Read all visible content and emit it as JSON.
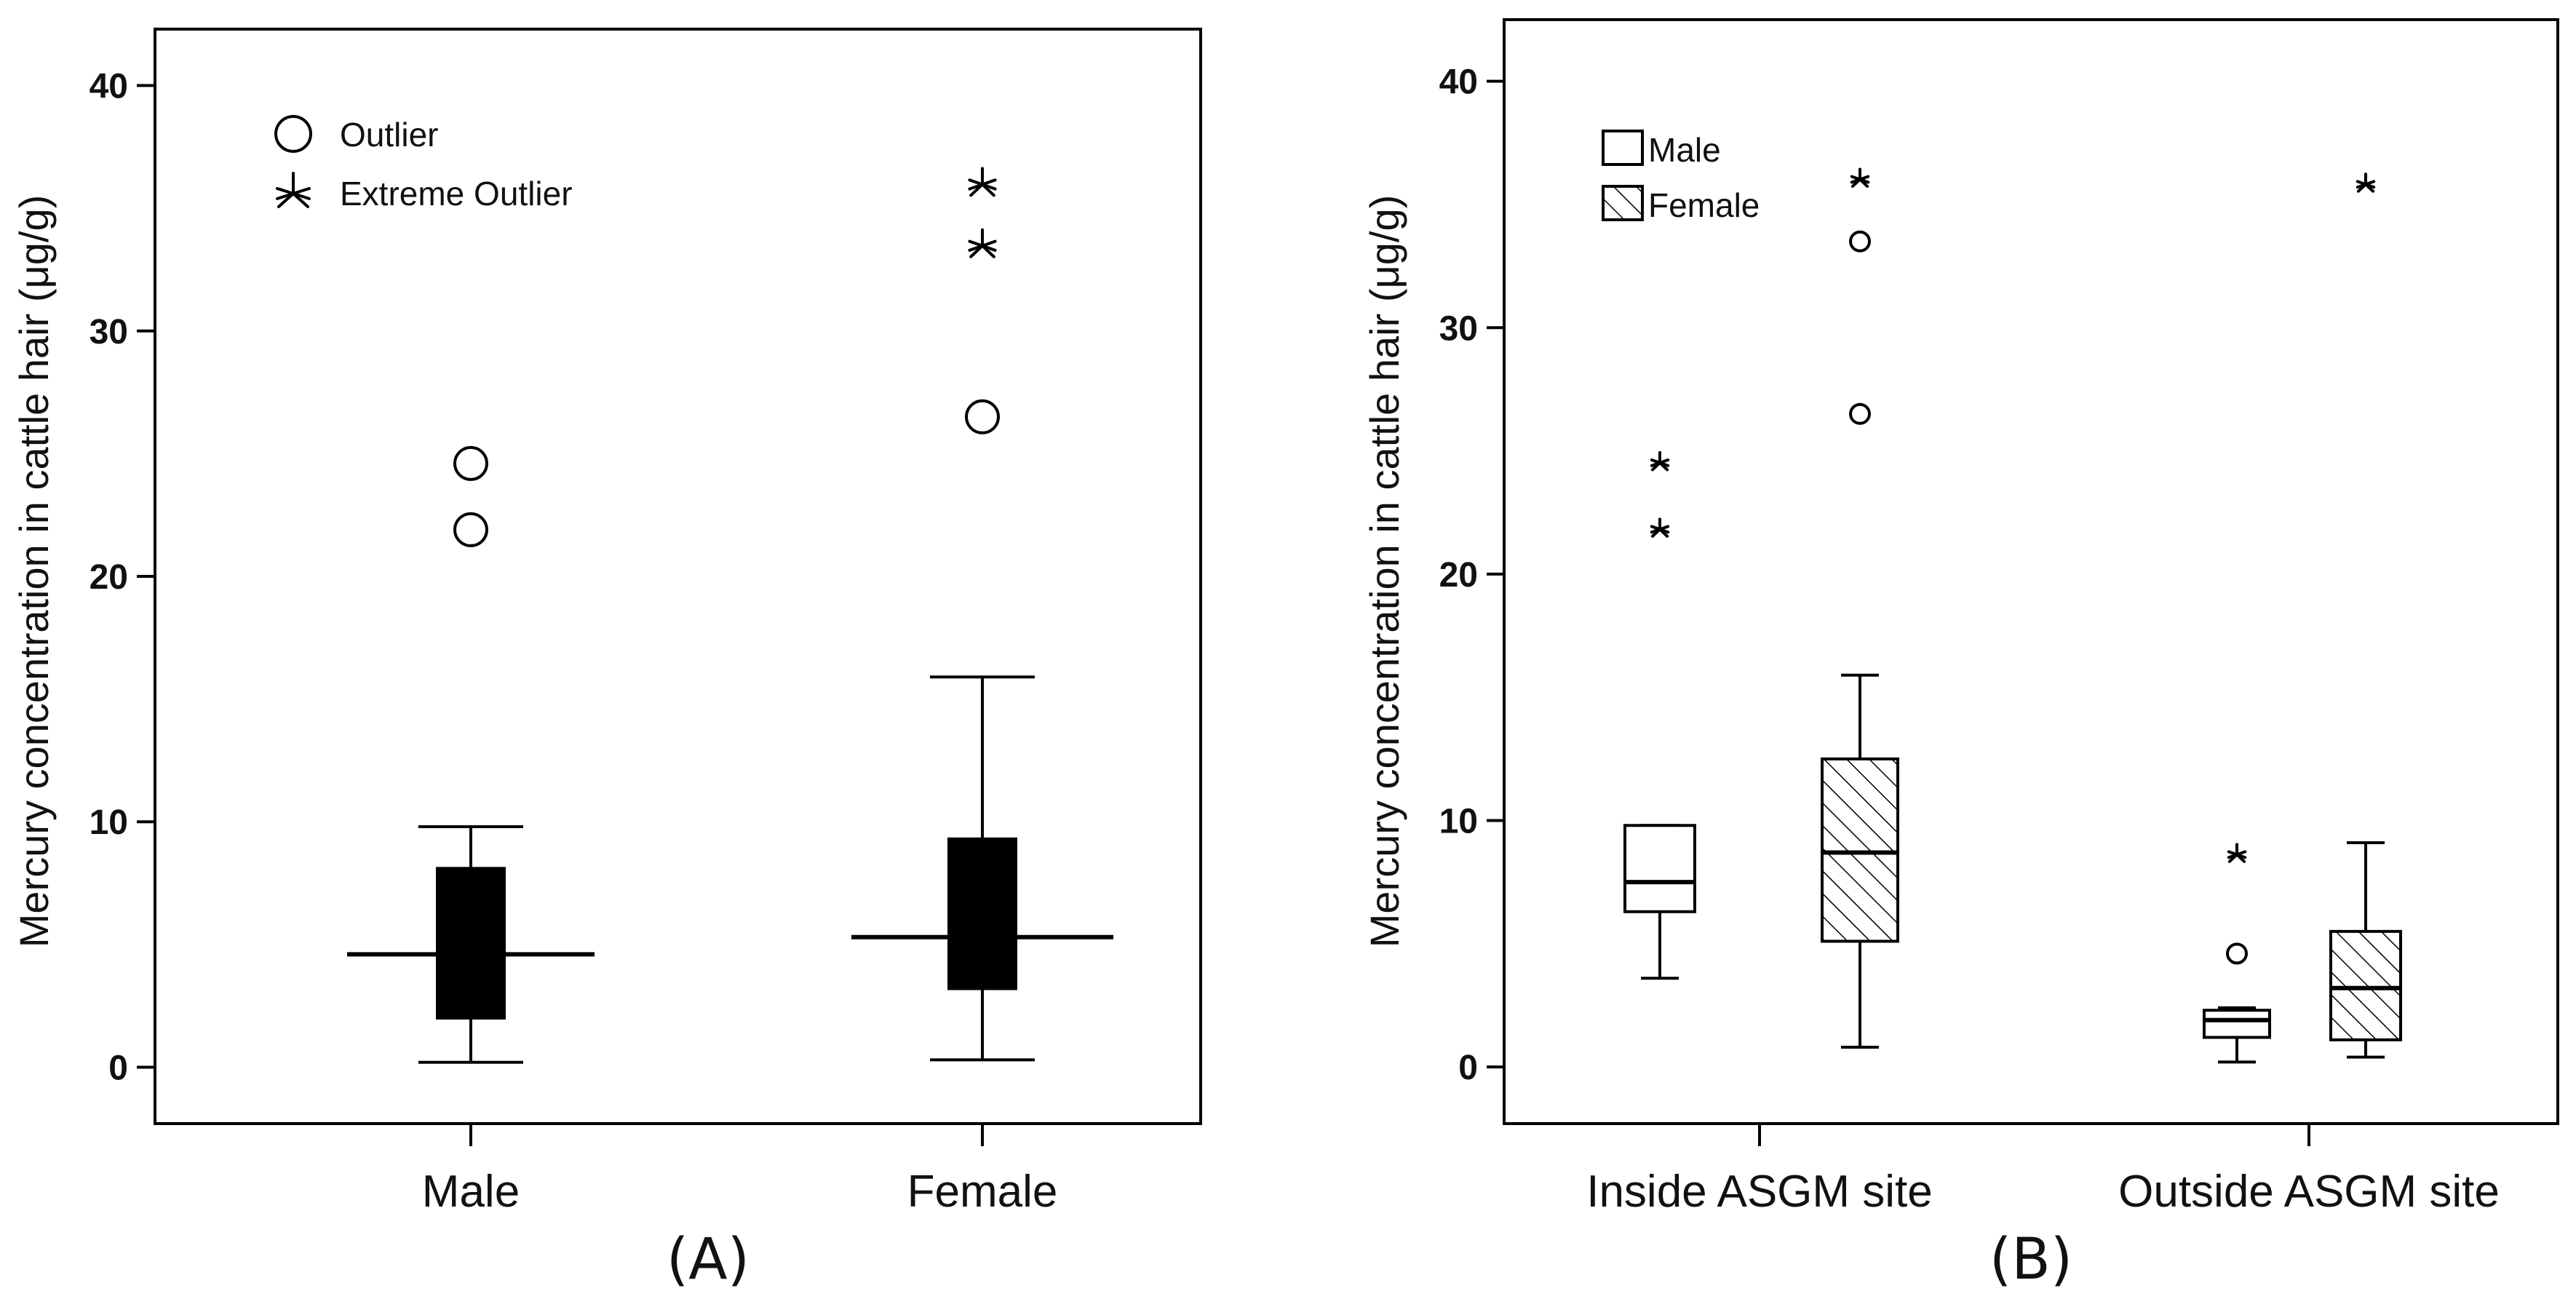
{
  "chart_data": [
    {
      "type": "box",
      "panel_label": "(A)",
      "title": "",
      "xlabel": "",
      "ylabel": "Mercury concentration in cattle hair (μg/g)",
      "ylim": [
        -2.3,
        42.3
      ],
      "yticks": [
        0,
        10,
        20,
        30,
        40
      ],
      "categories": [
        "Male",
        "Female"
      ],
      "legend": {
        "position": "top-left",
        "entries": [
          {
            "marker": "circle",
            "label": "Outlier"
          },
          {
            "marker": "star",
            "label": "Extreme Outlier"
          }
        ]
      },
      "series": [
        {
          "name": "Male",
          "category": "Male",
          "fill": "#000000",
          "min": 0.2,
          "q1": 2.0,
          "median": 4.6,
          "q3": 8.1,
          "max": 9.8,
          "outliers": [
            24.6,
            21.9
          ],
          "extreme_outliers": []
        },
        {
          "name": "Female",
          "category": "Female",
          "fill": "#000000",
          "min": 0.3,
          "q1": 3.2,
          "median": 5.3,
          "q3": 9.3,
          "max": 15.9,
          "outliers": [
            26.5
          ],
          "extreme_outliers": [
            36.1,
            33.6
          ]
        }
      ]
    },
    {
      "type": "box",
      "panel_label": "(B)",
      "title": "",
      "xlabel": "",
      "ylabel": "Mercury concentration in cattle hair (μg/g)",
      "ylim": [
        -2.3,
        42.5
      ],
      "yticks": [
        0,
        10,
        20,
        30,
        40
      ],
      "categories": [
        "Inside ASGM site",
        "Outside ASGM site"
      ],
      "legend": {
        "position": "top-left",
        "entries": [
          {
            "fill": "white",
            "label": "Male"
          },
          {
            "fill": "hatch",
            "label": "Female"
          }
        ]
      },
      "series": [
        {
          "name": "Male",
          "category": "Inside ASGM site",
          "fill": "white",
          "min": 3.6,
          "q1": 6.3,
          "median": 7.5,
          "q3": 9.8,
          "max": 9.8,
          "outliers": [],
          "extreme_outliers": [
            24.6,
            21.9
          ]
        },
        {
          "name": "Female",
          "category": "Inside ASGM site",
          "fill": "hatch",
          "min": 0.8,
          "q1": 5.1,
          "median": 8.7,
          "q3": 12.5,
          "max": 15.9,
          "outliers": [
            33.5,
            26.5
          ],
          "extreme_outliers": [
            36.1
          ]
        },
        {
          "name": "Male",
          "category": "Outside ASGM site",
          "fill": "white",
          "min": 0.2,
          "q1": 1.2,
          "median": 1.9,
          "q3": 2.3,
          "max": 2.4,
          "outliers": [
            4.6
          ],
          "extreme_outliers": [
            8.7
          ]
        },
        {
          "name": "Female",
          "category": "Outside ASGM site",
          "fill": "hatch",
          "min": 0.4,
          "q1": 1.1,
          "median": 3.2,
          "q3": 5.5,
          "max": 9.1,
          "outliers": [],
          "extreme_outliers": [
            35.9
          ]
        }
      ]
    }
  ]
}
